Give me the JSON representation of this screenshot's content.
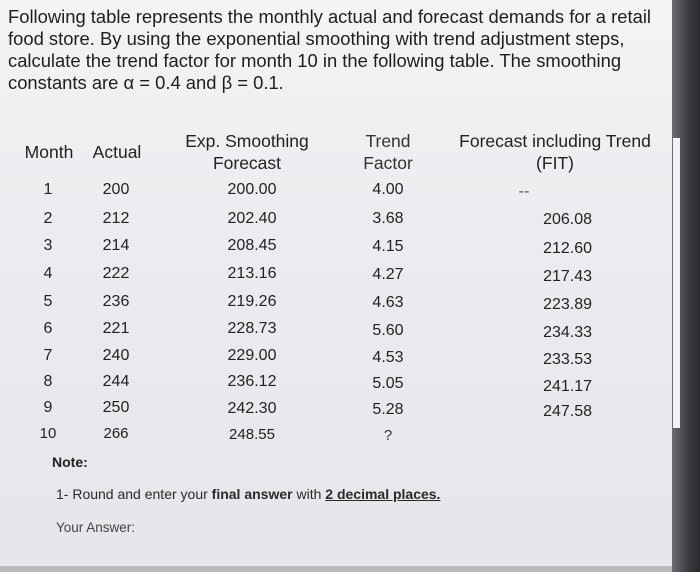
{
  "question": {
    "line1": "Following table represents the monthly actual and forecast demands for a retail",
    "line2": "food store. By using the exponential smoothing with trend adjustment steps,",
    "line3": "calculate the trend factor for month 10 in the following table. The smoothing",
    "line4": "constants are α = 0.4 and β = 0.1."
  },
  "table": {
    "headers": {
      "month": "Month",
      "actual": "Actual",
      "exp_line1": "Exp. Smoothing",
      "exp_line2": "Forecast",
      "trend_line1": "Trend",
      "trend_line2": "Factor",
      "fit_line1": "Forecast including Trend",
      "fit_line2": "(FIT)"
    },
    "rows": [
      {
        "month": "1",
        "actual": "200",
        "exp": "200.00",
        "trend": "4.00",
        "fit": "--"
      },
      {
        "month": "2",
        "actual": "212",
        "exp": "202.40",
        "trend": "3.68",
        "fit": "206.08"
      },
      {
        "month": "3",
        "actual": "214",
        "exp": "208.45",
        "trend": "4.15",
        "fit": "212.60"
      },
      {
        "month": "4",
        "actual": "222",
        "exp": "213.16",
        "trend": "4.27",
        "fit": "217.43"
      },
      {
        "month": "5",
        "actual": "236",
        "exp": "219.26",
        "trend": "4.63",
        "fit": "223.89"
      },
      {
        "month": "6",
        "actual": "221",
        "exp": "228.73",
        "trend": "5.60",
        "fit": "234.33"
      },
      {
        "month": "7",
        "actual": "240",
        "exp": "229.00",
        "trend": "4.53",
        "fit": "233.53"
      },
      {
        "month": "8",
        "actual": "244",
        "exp": "236.12",
        "trend": "5.05",
        "fit": "241.17"
      },
      {
        "month": "9",
        "actual": "250",
        "exp": "242.30",
        "trend": "5.28",
        "fit": "247.58"
      },
      {
        "month": "10",
        "actual": "266",
        "exp": "248.55",
        "trend": "?",
        "fit": ""
      }
    ]
  },
  "note": {
    "label": "Note:",
    "instruction_prefix": "1- Round and enter your ",
    "instruction_bold": "final answer",
    "instruction_mid": " with ",
    "instruction_underlined": "2 decimal places.",
    "answer_label": "Your Answer:"
  }
}
